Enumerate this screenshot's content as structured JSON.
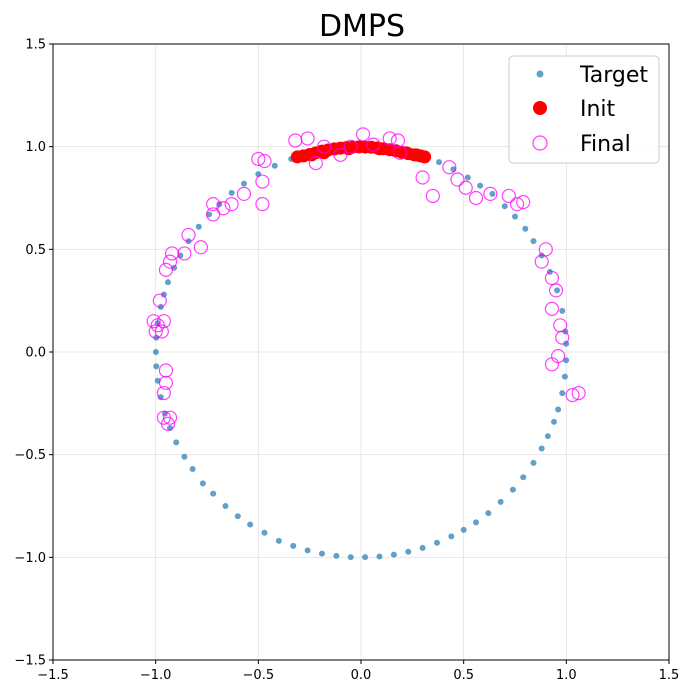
{
  "colors": {
    "target": "#1f77b4",
    "init": "#ff0000",
    "final": "#ff00ff",
    "grid": "#b0b0b0"
  },
  "chart_data": {
    "type": "scatter",
    "title": "DMPS",
    "xlabel": "",
    "ylabel": "",
    "xlim": [
      -1.5,
      1.5
    ],
    "ylim": [
      -1.5,
      1.5
    ],
    "xticks": [
      "−1.5",
      "−1.0",
      "−0.5",
      "0.0",
      "0.5",
      "1.0",
      "1.5"
    ],
    "yticks": [
      "−1.5",
      "−1.0",
      "−0.5",
      "0.0",
      "0.5",
      "1.0",
      "1.5"
    ],
    "xtick_values": [
      -1.5,
      -1.0,
      -0.5,
      0.0,
      0.5,
      1.0,
      1.5
    ],
    "ytick_values": [
      -1.5,
      -1.0,
      -0.5,
      0.0,
      0.5,
      1.0,
      1.5
    ],
    "grid": true,
    "legend_position": "top-right",
    "series": [
      {
        "name": "Target",
        "marker": "filled-dot",
        "description": "≈300 points on unit circle",
        "points": [
          [
            0.999,
            0.04
          ],
          [
            0.995,
            0.1
          ],
          [
            0.98,
            0.2
          ],
          [
            0.955,
            0.3
          ],
          [
            0.92,
            0.39
          ],
          [
            0.88,
            0.47
          ],
          [
            0.84,
            0.54
          ],
          [
            0.8,
            0.6
          ],
          [
            0.75,
            0.66
          ],
          [
            0.7,
            0.71
          ],
          [
            0.64,
            0.77
          ],
          [
            0.58,
            0.81
          ],
          [
            0.52,
            0.85
          ],
          [
            0.45,
            0.89
          ],
          [
            0.38,
            0.925
          ],
          [
            0.3,
            0.953
          ],
          [
            0.22,
            0.975
          ],
          [
            0.14,
            0.99
          ],
          [
            0.06,
            0.998
          ],
          [
            -0.02,
            0.999
          ],
          [
            -0.1,
            0.995
          ],
          [
            -0.18,
            0.983
          ],
          [
            -0.26,
            0.965
          ],
          [
            -0.34,
            0.94
          ],
          [
            -0.42,
            0.907
          ],
          [
            -0.5,
            0.866
          ],
          [
            -0.57,
            0.82
          ],
          [
            -0.63,
            0.775
          ],
          [
            -0.69,
            0.72
          ],
          [
            -0.74,
            0.67
          ],
          [
            -0.79,
            0.61
          ],
          [
            -0.84,
            0.54
          ],
          [
            -0.88,
            0.47
          ],
          [
            -0.91,
            0.41
          ],
          [
            -0.94,
            0.34
          ],
          [
            -0.96,
            0.28
          ],
          [
            -0.975,
            0.22
          ],
          [
            -0.99,
            0.14
          ],
          [
            -0.997,
            0.07
          ],
          [
            -0.999,
            0.0
          ],
          [
            -0.997,
            -0.07
          ],
          [
            -0.99,
            -0.14
          ],
          [
            -0.975,
            -0.22
          ],
          [
            -0.955,
            -0.3
          ],
          [
            -0.93,
            -0.37
          ],
          [
            -0.9,
            -0.44
          ],
          [
            -0.86,
            -0.51
          ],
          [
            -0.82,
            -0.57
          ],
          [
            -0.77,
            -0.64
          ],
          [
            -0.72,
            -0.69
          ],
          [
            -0.66,
            -0.75
          ],
          [
            -0.6,
            -0.8
          ],
          [
            -0.54,
            -0.84
          ],
          [
            -0.47,
            -0.88
          ],
          [
            -0.4,
            -0.92
          ],
          [
            -0.33,
            -0.944
          ],
          [
            -0.26,
            -0.966
          ],
          [
            -0.19,
            -0.982
          ],
          [
            -0.12,
            -0.993
          ],
          [
            -0.05,
            -0.999
          ],
          [
            0.02,
            -0.999
          ],
          [
            0.09,
            -0.996
          ],
          [
            0.16,
            -0.987
          ],
          [
            0.23,
            -0.973
          ],
          [
            0.3,
            -0.954
          ],
          [
            0.37,
            -0.929
          ],
          [
            0.44,
            -0.898
          ],
          [
            0.5,
            -0.866
          ],
          [
            0.56,
            -0.83
          ],
          [
            0.62,
            -0.785
          ],
          [
            0.68,
            -0.73
          ],
          [
            0.74,
            -0.67
          ],
          [
            0.79,
            -0.61
          ],
          [
            0.84,
            -0.54
          ],
          [
            0.88,
            -0.47
          ],
          [
            0.91,
            -0.41
          ],
          [
            0.94,
            -0.34
          ],
          [
            0.96,
            -0.28
          ],
          [
            0.98,
            -0.2
          ],
          [
            0.993,
            -0.12
          ],
          [
            0.999,
            -0.04
          ]
        ]
      },
      {
        "name": "Init",
        "marker": "large-filled-dot",
        "description": "clustered near top of circle",
        "points": [
          [
            -0.31,
            0.95
          ],
          [
            -0.28,
            0.955
          ],
          [
            -0.25,
            0.962
          ],
          [
            -0.22,
            0.97
          ],
          [
            -0.19,
            0.978
          ],
          [
            -0.16,
            0.984
          ],
          [
            -0.13,
            0.989
          ],
          [
            -0.1,
            0.993
          ],
          [
            -0.07,
            0.996
          ],
          [
            -0.04,
            0.998
          ],
          [
            -0.01,
            0.999
          ],
          [
            0.02,
            0.998
          ],
          [
            0.05,
            0.997
          ],
          [
            0.08,
            0.994
          ],
          [
            0.11,
            0.99
          ],
          [
            0.14,
            0.985
          ],
          [
            0.17,
            0.98
          ],
          [
            0.2,
            0.972
          ],
          [
            0.23,
            0.966
          ],
          [
            0.26,
            0.96
          ],
          [
            0.29,
            0.955
          ],
          [
            0.31,
            0.95
          ],
          [
            -0.24,
            0.96
          ],
          [
            -0.06,
            0.99
          ],
          [
            0.09,
            0.99
          ],
          [
            0.22,
            0.97
          ],
          [
            -0.18,
            0.97
          ],
          [
            0.27,
            0.96
          ]
        ]
      },
      {
        "name": "Final",
        "marker": "hollow-circle",
        "description": "ring of hollow circles around circle",
        "points": [
          [
            -0.32,
            1.03
          ],
          [
            -0.26,
            1.04
          ],
          [
            -0.22,
            0.92
          ],
          [
            -0.18,
            1.0
          ],
          [
            -0.1,
            0.96
          ],
          [
            -0.05,
            1.0
          ],
          [
            0.01,
            1.06
          ],
          [
            0.06,
            1.01
          ],
          [
            0.14,
            1.04
          ],
          [
            0.18,
            1.03
          ],
          [
            0.19,
            0.97
          ],
          [
            0.3,
            0.85
          ],
          [
            0.35,
            0.76
          ],
          [
            0.43,
            0.9
          ],
          [
            0.47,
            0.84
          ],
          [
            0.51,
            0.8
          ],
          [
            0.56,
            0.75
          ],
          [
            0.63,
            0.77
          ],
          [
            0.72,
            0.76
          ],
          [
            0.76,
            0.72
          ],
          [
            0.79,
            0.73
          ],
          [
            0.88,
            0.44
          ],
          [
            0.9,
            0.5
          ],
          [
            0.93,
            0.36
          ],
          [
            0.95,
            0.3
          ],
          [
            0.93,
            0.21
          ],
          [
            0.97,
            0.13
          ],
          [
            0.98,
            0.07
          ],
          [
            0.96,
            -0.02
          ],
          [
            0.93,
            -0.06
          ],
          [
            1.03,
            -0.21
          ],
          [
            1.06,
            -0.2
          ],
          [
            -0.5,
            0.94
          ],
          [
            -0.47,
            0.93
          ],
          [
            -0.48,
            0.83
          ],
          [
            -0.48,
            0.72
          ],
          [
            -0.57,
            0.77
          ],
          [
            -0.63,
            0.72
          ],
          [
            -0.67,
            0.7
          ],
          [
            -0.72,
            0.72
          ],
          [
            -0.72,
            0.67
          ],
          [
            -0.78,
            0.51
          ],
          [
            -0.84,
            0.57
          ],
          [
            -0.86,
            0.48
          ],
          [
            -0.92,
            0.48
          ],
          [
            -0.93,
            0.44
          ],
          [
            -0.95,
            0.4
          ],
          [
            -0.98,
            0.25
          ],
          [
            -0.96,
            0.15
          ],
          [
            -0.99,
            0.13
          ],
          [
            -0.97,
            0.1
          ],
          [
            -1.0,
            0.1
          ],
          [
            -1.01,
            0.15
          ],
          [
            -0.95,
            -0.09
          ],
          [
            -0.95,
            -0.15
          ],
          [
            -0.96,
            -0.2
          ],
          [
            -0.96,
            -0.32
          ],
          [
            -0.93,
            -0.32
          ],
          [
            -0.94,
            -0.35
          ]
        ]
      }
    ]
  }
}
